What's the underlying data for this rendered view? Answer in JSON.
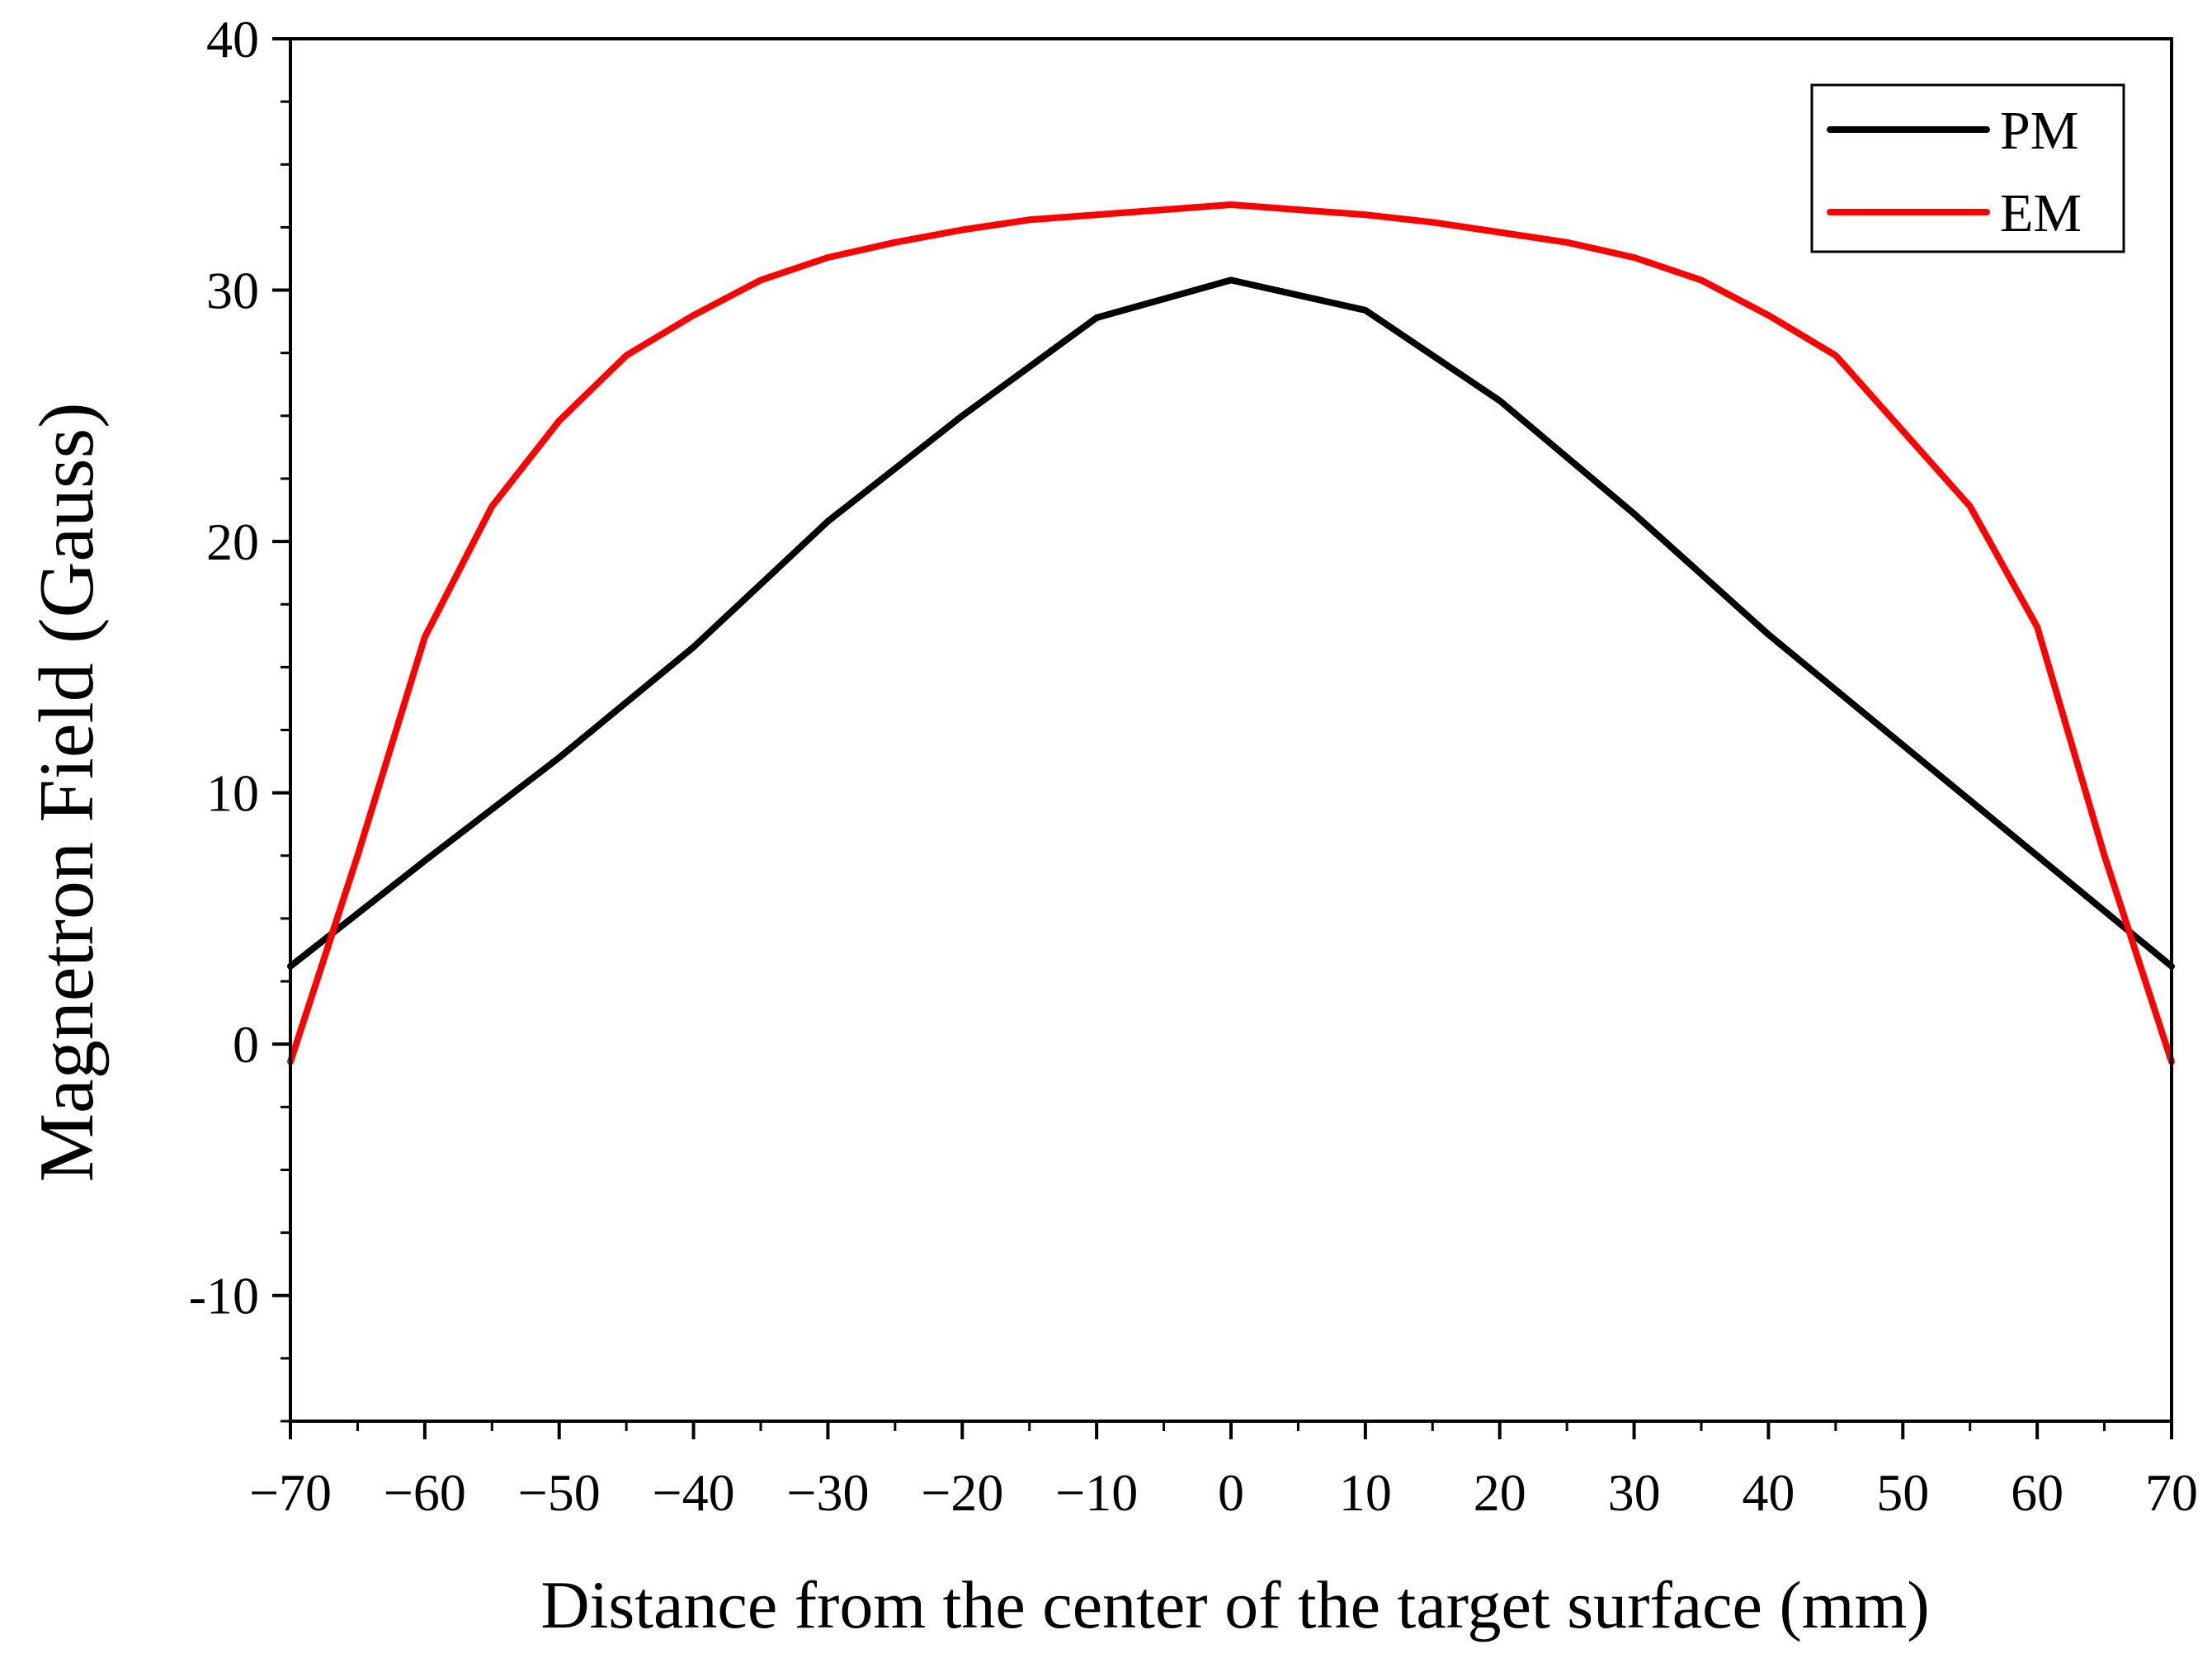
{
  "chart_data": {
    "type": "line",
    "title": "",
    "xlabel": "Distance from the center of the target surface (mm)",
    "ylabel": "Magnetron Field (Gauss)",
    "xlim": [
      -70,
      70
    ],
    "ylim": [
      -15,
      40
    ],
    "xticks": [
      -70,
      -60,
      -50,
      -40,
      -30,
      -20,
      -10,
      0,
      10,
      20,
      30,
      40,
      50,
      60,
      70
    ],
    "xtick_labels": [
      "−70",
      "−60",
      "−50",
      "−40",
      "−30",
      "−20",
      "−10",
      "0",
      "10",
      "20",
      "30",
      "40",
      "50",
      "60",
      "70"
    ],
    "yticks": [
      -10,
      0,
      10,
      20,
      30,
      40
    ],
    "ytick_labels": [
      "-10",
      "0",
      "10",
      "20",
      "30",
      "40"
    ],
    "grid": false,
    "legend_position": "top-right",
    "series": [
      {
        "name": "PM",
        "color": "#000000",
        "x": [
          -70,
          -60,
          -50,
          -40,
          -30,
          -20,
          -10,
          0,
          10,
          20,
          30,
          40,
          50,
          60,
          70
        ],
        "y": [
          3.1,
          7.3,
          11.4,
          15.8,
          20.8,
          25.0,
          28.9,
          30.4,
          29.2,
          25.6,
          21.1,
          16.3,
          11.9,
          7.5,
          3.1
        ]
      },
      {
        "name": "EM",
        "color": "#ff0000",
        "x": [
          -70,
          -65,
          -60,
          -55,
          -50,
          -45,
          -40,
          -35,
          -30,
          -25,
          -20,
          -15,
          -10,
          -5,
          0,
          5,
          10,
          15,
          20,
          25,
          30,
          35,
          40,
          45,
          50,
          55,
          60,
          65,
          70
        ],
        "y": [
          -0.7,
          7.5,
          16.2,
          21.4,
          24.8,
          27.4,
          29.0,
          30.4,
          31.3,
          31.9,
          32.4,
          32.8,
          33.0,
          33.2,
          33.4,
          33.2,
          33.0,
          32.7,
          32.3,
          31.9,
          31.3,
          30.4,
          29.0,
          27.4,
          24.4,
          21.4,
          16.6,
          7.5,
          -0.7
        ]
      }
    ]
  }
}
